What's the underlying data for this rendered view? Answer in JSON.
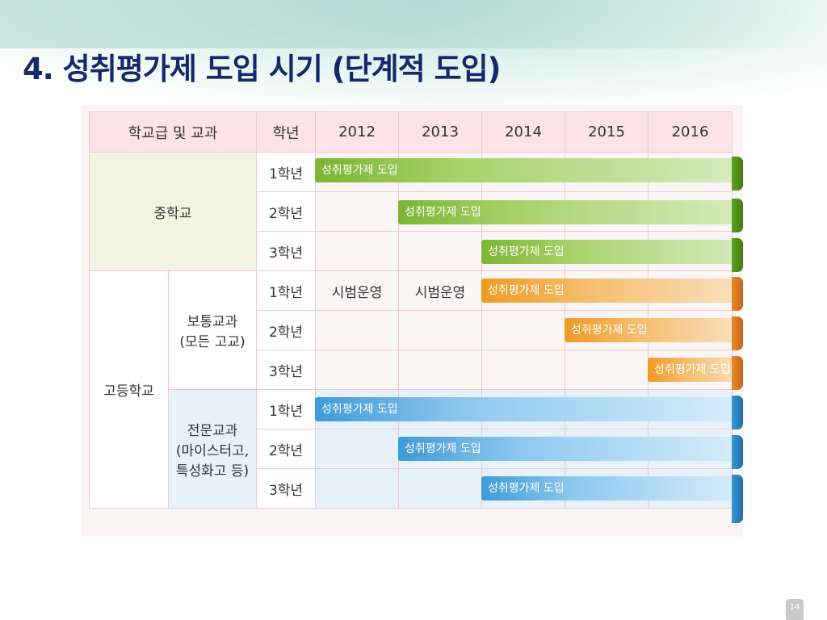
{
  "title": "4. 성취평가제 도입 시기 (단계적  도입)",
  "header": {
    "school_subject": "학교급 및 교과",
    "grade": "학년",
    "years": [
      "2012",
      "2013",
      "2014",
      "2015",
      "2016"
    ]
  },
  "middle_school": {
    "label": "중학교",
    "grades": [
      "1학년",
      "2학년",
      "3학년"
    ]
  },
  "high_school": {
    "label": "고등학교",
    "general": {
      "label_line1": "보통교과",
      "label_line2": "(모든 고교)",
      "grades": [
        "1학년",
        "2학년",
        "3학년"
      ]
    },
    "vocational": {
      "label_line1": "전문교과",
      "label_line2": "(마이스터고,",
      "label_line3": "특성화고 등)",
      "grades": [
        "1학년",
        "2학년",
        "3학년"
      ]
    }
  },
  "trial_label": "시범운영",
  "bars": [
    {
      "text": "성취평가제 도입",
      "start_year": "2012",
      "color": "#7cb534"
    },
    {
      "text": "성취평가제 도입",
      "start_year": "2013",
      "color": "#7cb534"
    },
    {
      "text": "성취평가제 도입",
      "start_year": "2014",
      "color": "#7cb534"
    },
    {
      "text": "성취평가제 도입",
      "start_year": "2014",
      "color": "#f19a22"
    },
    {
      "text": "성취평가제 도입",
      "start_year": "2015",
      "color": "#f19a22"
    },
    {
      "text": "성취평가제 도입",
      "start_year": "2016",
      "color": "#f19a22"
    },
    {
      "text": "성취평가제 도입",
      "start_year": "2012",
      "color": "#3f9ad8"
    },
    {
      "text": "성취평가제 도입",
      "start_year": "2013",
      "color": "#3f9ad8"
    },
    {
      "text": "성취평가제 도입",
      "start_year": "2014",
      "color": "#3f9ad8"
    }
  ],
  "page_number": "14"
}
